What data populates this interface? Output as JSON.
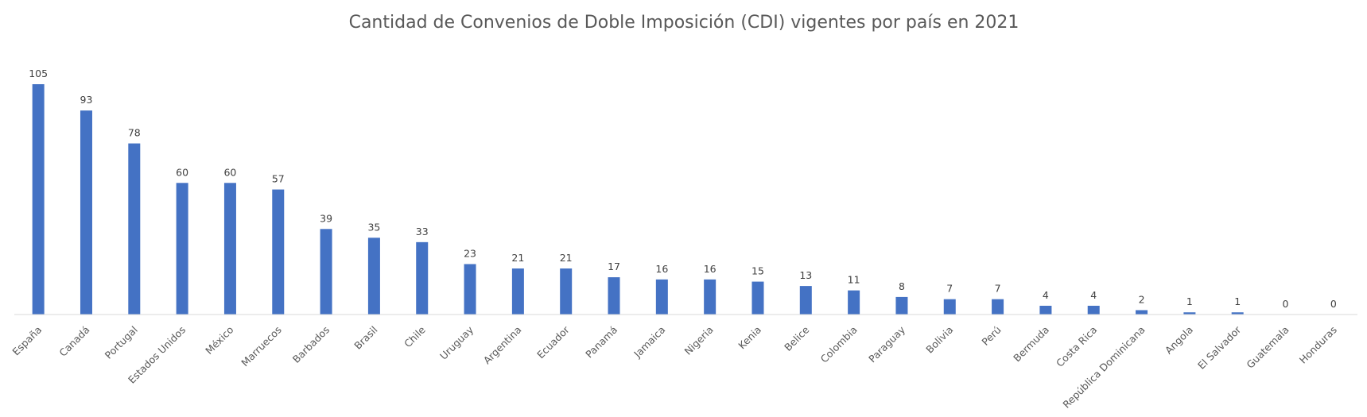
{
  "chart_data": {
    "type": "bar",
    "title": "Cantidad de Convenios de Doble Imposición (CDI) vigentes por país en 2021",
    "xlabel": "",
    "ylabel": "",
    "categories": [
      "España",
      "Canadá",
      "Portugal",
      "Estados Unidos",
      "México",
      "Marruecos",
      "Barbados",
      "Brasil",
      "Chile",
      "Uruguay",
      "Argentina",
      "Ecuador",
      "Panamá",
      "Jamaica",
      "Nigeria",
      "Kenia",
      "Belice",
      "Colombia",
      "Paraguay",
      "Bolivia",
      "Perú",
      "Bermuda",
      "Costa Rica",
      "República Dominicana",
      "Angola",
      "El Salvador",
      "Guatemala",
      "Honduras"
    ],
    "values": [
      105,
      93,
      78,
      60,
      60,
      57,
      39,
      35,
      33,
      23,
      21,
      21,
      17,
      16,
      16,
      15,
      13,
      11,
      8,
      7,
      7,
      4,
      4,
      2,
      1,
      1,
      0,
      0
    ],
    "ylim": [
      0,
      105
    ],
    "grid": false,
    "legend": "none",
    "data_labels": true,
    "bar_color": "#4472C4"
  }
}
